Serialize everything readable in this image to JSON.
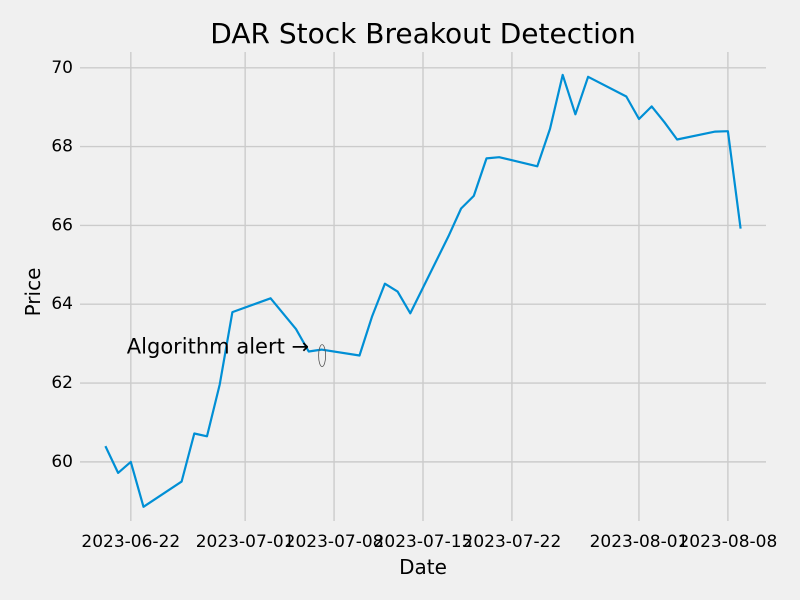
{
  "chart_data": {
    "type": "line",
    "title": "DAR Stock Breakout Detection",
    "xlabel": "Date",
    "ylabel": "Price",
    "x_ticks": [
      "2023-06-22",
      "2023-07-01",
      "2023-07-08",
      "2023-07-15",
      "2023-07-22",
      "2023-08-01",
      "2023-08-08"
    ],
    "y_ticks": [
      60,
      62,
      64,
      66,
      68,
      70
    ],
    "xlim": [
      "2023-06-18",
      "2023-08-11"
    ],
    "ylim": [
      58.5,
      70.4
    ],
    "grid": true,
    "line_color": "#008fd5",
    "series": [
      {
        "x": [
          "2023-06-20",
          "2023-06-21",
          "2023-06-22",
          "2023-06-23",
          "2023-06-26",
          "2023-06-27",
          "2023-06-28",
          "2023-06-29",
          "2023-06-30",
          "2023-07-03",
          "2023-07-05",
          "2023-07-06",
          "2023-07-07",
          "2023-07-10",
          "2023-07-11",
          "2023-07-12",
          "2023-07-13",
          "2023-07-14",
          "2023-07-17",
          "2023-07-18",
          "2023-07-19",
          "2023-07-20",
          "2023-07-21",
          "2023-07-24",
          "2023-07-25",
          "2023-07-26",
          "2023-07-27",
          "2023-07-28",
          "2023-07-31",
          "2023-08-01",
          "2023-08-02",
          "2023-08-03",
          "2023-08-04",
          "2023-08-07",
          "2023-08-08",
          "2023-08-09"
        ],
        "values": [
          60.4,
          59.72,
          60.0,
          58.86,
          59.5,
          60.72,
          60.65,
          61.96,
          63.8,
          64.15,
          63.37,
          62.8,
          62.85,
          62.7,
          63.7,
          64.52,
          64.32,
          63.77,
          65.72,
          66.43,
          66.75,
          67.7,
          67.73,
          67.5,
          68.45,
          69.82,
          68.82,
          69.77,
          69.27,
          68.7,
          69.02,
          68.62,
          68.18,
          68.38,
          68.39,
          65.92
        ]
      }
    ],
    "annotations": [
      {
        "text": "Algorithm alert →",
        "date": "2023-07-08",
        "price": 62.9
      }
    ]
  }
}
